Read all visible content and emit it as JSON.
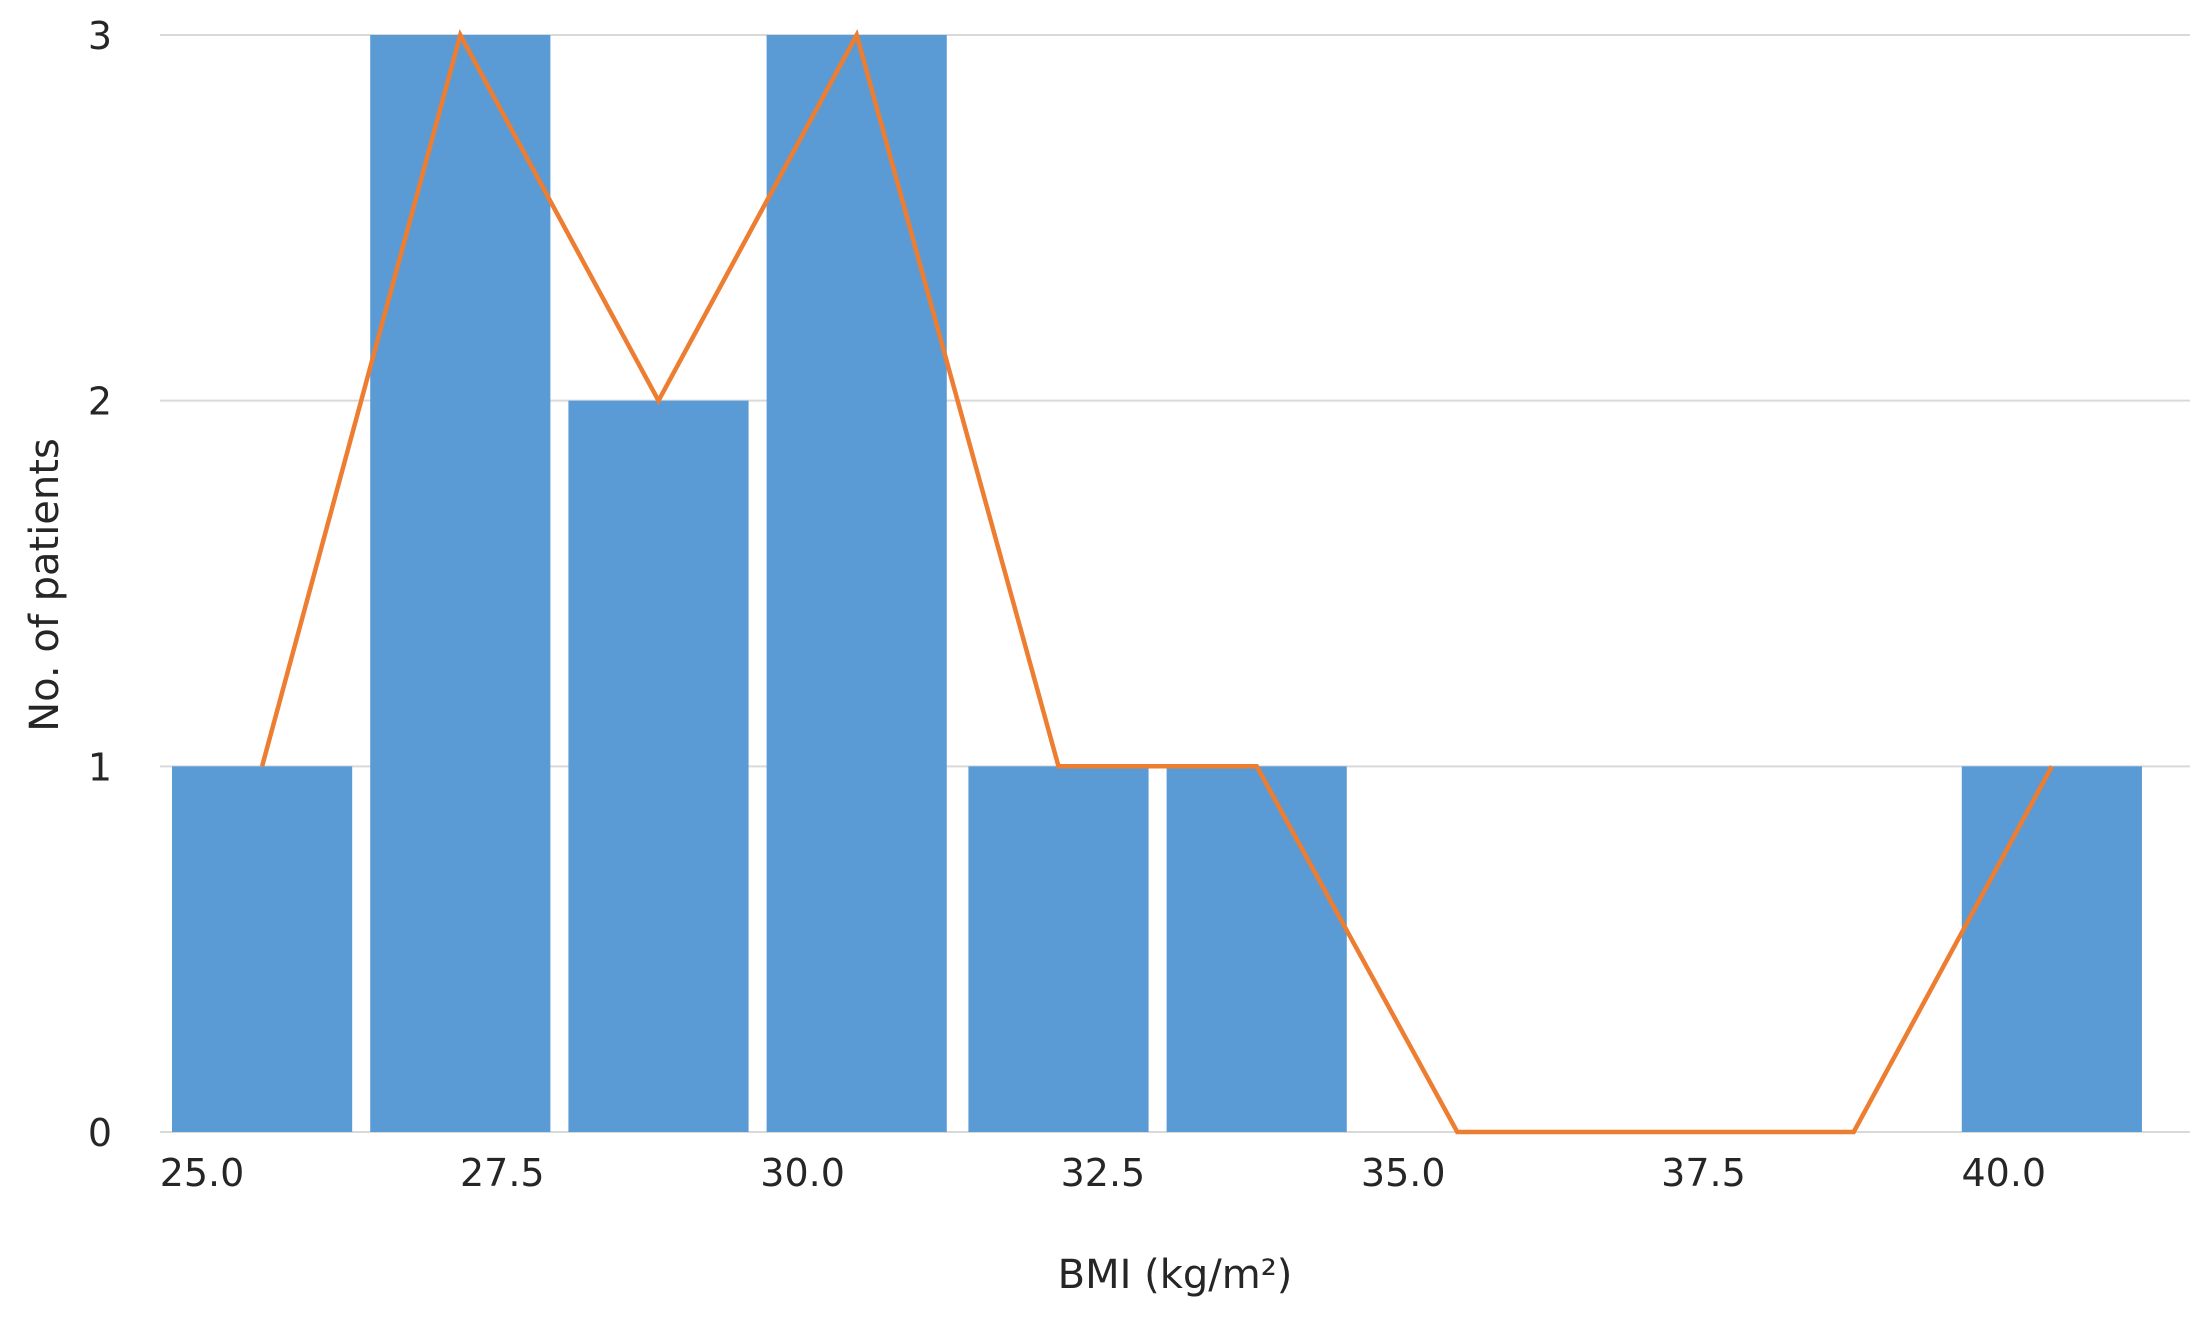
{
  "chart_data": {
    "type": "bar",
    "title": "",
    "xlabel": "BMI (kg/m²)",
    "ylabel": "No. of patients",
    "x_ticks": [
      25.0,
      27.5,
      30.0,
      32.5,
      35.0,
      37.5,
      40.0
    ],
    "x_tick_labels": [
      "25.0",
      "27.5",
      "30.0",
      "32.5",
      "35.0",
      "37.5",
      "40.0"
    ],
    "y_ticks": [
      0,
      1,
      2,
      3
    ],
    "y_tick_labels": [
      "0",
      "1",
      "2",
      "3"
    ],
    "xlim": [
      24.9,
      41.8
    ],
    "ylim": [
      0,
      3
    ],
    "grid": "horizontal",
    "bars": [
      {
        "x_start": 25.0,
        "x_end": 26.5,
        "value": 1
      },
      {
        "x_start": 26.65,
        "x_end": 28.15,
        "value": 3
      },
      {
        "x_start": 28.3,
        "x_end": 29.8,
        "value": 2
      },
      {
        "x_start": 29.95,
        "x_end": 31.45,
        "value": 3
      },
      {
        "x_start": 31.63,
        "x_end": 33.13,
        "value": 1
      },
      {
        "x_start": 33.28,
        "x_end": 34.78,
        "value": 1
      },
      {
        "x_start": 39.9,
        "x_end": 41.4,
        "value": 1
      }
    ],
    "line": {
      "x": [
        25.75,
        27.4,
        29.05,
        30.7,
        32.38,
        34.03,
        35.7,
        37.35,
        39.0,
        40.65
      ],
      "y": [
        1,
        3,
        2,
        3,
        1,
        1,
        0,
        0,
        0,
        1
      ]
    },
    "colors": {
      "bar": "#5b9bd5",
      "line": "#ed7d31",
      "grid": "#d9d9d9"
    }
  }
}
